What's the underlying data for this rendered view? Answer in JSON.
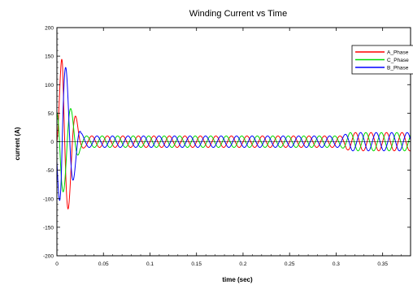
{
  "chart_data": {
    "type": "line",
    "title": "Winding Current vs Time",
    "xlabel": "time (sec)",
    "ylabel": "current (A)",
    "xlim": [
      0,
      0.38
    ],
    "ylim": [
      -200,
      200
    ],
    "xticks": [
      0,
      0.05,
      0.1,
      0.15,
      0.2,
      0.25,
      0.3,
      0.35
    ],
    "xtick_labels": [
      "0",
      "0.05",
      "0.1",
      "0.15",
      "0.2",
      "0.25",
      "0.3",
      "0.35"
    ],
    "yticks": [
      -200,
      -150,
      -100,
      -50,
      0,
      50,
      100,
      150,
      200
    ],
    "ytick_labels": [
      "-200",
      "-150",
      "-100",
      "-50",
      "0",
      "50",
      "100",
      "150",
      "200"
    ],
    "grid": false,
    "legend_position": "top-right",
    "frequency_hz": 60,
    "series": [
      {
        "name": "A_Phase",
        "color": "#ff0000",
        "phase_deg": 0,
        "envelope": [
          [
            0,
            20
          ],
          [
            0.006,
            165
          ],
          [
            0.012,
            120
          ],
          [
            0.018,
            60
          ],
          [
            0.025,
            15
          ],
          [
            0.03,
            10
          ],
          [
            0.305,
            10
          ],
          [
            0.315,
            16
          ],
          [
            0.38,
            16
          ]
        ],
        "offset": [
          [
            0,
            0
          ],
          [
            0.005,
            10
          ],
          [
            0.01,
            0
          ],
          [
            0.03,
            0
          ],
          [
            0.38,
            0
          ]
        ]
      },
      {
        "name": "C_Phase",
        "color": "#00dd00",
        "phase_deg": 120,
        "envelope": [
          [
            0,
            60
          ],
          [
            0.004,
            95
          ],
          [
            0.01,
            80
          ],
          [
            0.018,
            45
          ],
          [
            0.025,
            15
          ],
          [
            0.03,
            10
          ],
          [
            0.305,
            10
          ],
          [
            0.315,
            16
          ],
          [
            0.38,
            16
          ]
        ],
        "offset": [
          [
            0,
            0
          ],
          [
            0.38,
            0
          ]
        ]
      },
      {
        "name": "B_Phase",
        "color": "#0000ff",
        "phase_deg": 240,
        "envelope": [
          [
            0,
            40
          ],
          [
            0.005,
            170
          ],
          [
            0.012,
            110
          ],
          [
            0.02,
            50
          ],
          [
            0.026,
            15
          ],
          [
            0.03,
            10
          ],
          [
            0.305,
            10
          ],
          [
            0.315,
            16
          ],
          [
            0.38,
            16
          ]
        ],
        "offset": [
          [
            0,
            0
          ],
          [
            0.005,
            -10
          ],
          [
            0.01,
            0
          ],
          [
            0.38,
            0
          ]
        ]
      }
    ]
  }
}
